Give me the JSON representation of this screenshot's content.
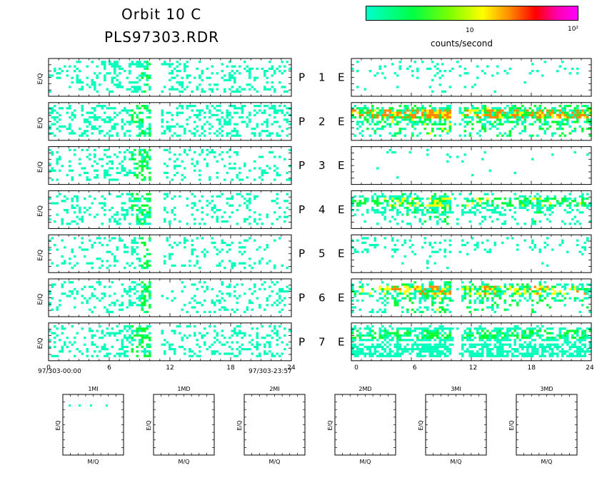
{
  "header": {
    "title_line1": "Orbit 10 C",
    "title_line2": "PLS97303.RDR"
  },
  "colorbar": {
    "tick_mid": "10",
    "tick_high": "10²",
    "label": "counts/second",
    "colors": [
      "#00ffcc",
      "#00ff00",
      "#ffff00",
      "#ff7f00",
      "#ff0000",
      "#ff00ff"
    ]
  },
  "chart_data": [
    {
      "type": "heatmap",
      "group": "P",
      "ylabel": "E/Q",
      "x_ticks": [
        "0",
        "6",
        "12",
        "18",
        "24"
      ],
      "xlim": [
        0,
        24
      ],
      "x_left_label": "97/303-00:00",
      "x_right_label": "97/303-23:57",
      "panels": [
        {
          "label": "P",
          "num": "1",
          "activity": [
            0.35,
            0.3,
            0.5,
            0.4,
            0.45,
            0.6,
            0.55,
            0.5,
            0.8,
            0.85,
            0.0,
            0.4,
            0.5,
            0.45,
            0.3,
            0.4,
            0.3,
            0.5,
            0.55,
            0.4,
            0.3,
            0.25,
            0.4,
            0.3
          ],
          "max_level": 1
        },
        {
          "label": "P",
          "num": "2",
          "activity": [
            0.55,
            0.5,
            0.55,
            0.5,
            0.45,
            0.55,
            0.5,
            0.6,
            0.85,
            0.9,
            0.0,
            0.5,
            0.55,
            0.6,
            0.5,
            0.55,
            0.45,
            0.5,
            0.65,
            0.5,
            0.45,
            0.5,
            0.5,
            0.45
          ],
          "max_level": 1
        },
        {
          "label": "P",
          "num": "3",
          "activity": [
            0.3,
            0.3,
            0.35,
            0.4,
            0.35,
            0.45,
            0.4,
            0.45,
            0.85,
            0.9,
            0.0,
            0.35,
            0.4,
            0.35,
            0.35,
            0.3,
            0.35,
            0.4,
            0.45,
            0.35,
            0.3,
            0.35,
            0.4,
            0.3
          ],
          "max_level": 1
        },
        {
          "label": "P",
          "num": "4",
          "activity": [
            0.3,
            0.25,
            0.35,
            0.3,
            0.35,
            0.45,
            0.4,
            0.55,
            0.85,
            0.9,
            0.0,
            0.35,
            0.4,
            0.3,
            0.35,
            0.3,
            0.35,
            0.3,
            0.4,
            0.35,
            0.3,
            0.25,
            0.3,
            0.25
          ],
          "max_level": 1
        },
        {
          "label": "P",
          "num": "5",
          "activity": [
            0.2,
            0.25,
            0.3,
            0.35,
            0.3,
            0.3,
            0.35,
            0.45,
            0.8,
            0.85,
            0.0,
            0.2,
            0.3,
            0.25,
            0.3,
            0.2,
            0.3,
            0.35,
            0.3,
            0.25,
            0.2,
            0.2,
            0.2,
            0.15
          ],
          "max_level": 1
        },
        {
          "label": "P",
          "num": "6",
          "activity": [
            0.3,
            0.35,
            0.3,
            0.4,
            0.35,
            0.45,
            0.4,
            0.5,
            0.8,
            0.85,
            0.0,
            0.1,
            0.15,
            0.2,
            0.2,
            0.25,
            0.3,
            0.35,
            0.4,
            0.3,
            0.25,
            0.3,
            0.3,
            0.25
          ],
          "max_level": 1
        },
        {
          "label": "P",
          "num": "7",
          "activity": [
            0.35,
            0.4,
            0.45,
            0.4,
            0.5,
            0.55,
            0.5,
            0.6,
            0.85,
            0.9,
            0.0,
            0.35,
            0.4,
            0.5,
            0.4,
            0.35,
            0.4,
            0.45,
            0.6,
            0.45,
            0.35,
            0.35,
            0.4,
            0.35
          ],
          "max_level": 1
        }
      ]
    },
    {
      "type": "heatmap",
      "group": "E",
      "x_ticks": [
        "0",
        "6",
        "12",
        "18",
        "24"
      ],
      "xlim": [
        0,
        24
      ],
      "panels": [
        {
          "label": "E",
          "num": "1",
          "activity": [
            0.1,
            0.1,
            0.15,
            0.1,
            0.1,
            0.05,
            0.1,
            0.15,
            0.25,
            0.2,
            0.1,
            0.1,
            0.1,
            0.15,
            0.1,
            0.1,
            0.05,
            0.1,
            0.15,
            0.1,
            0.05,
            0.1,
            0.1,
            0.05
          ],
          "max_level": 1
        },
        {
          "label": "E",
          "num": "2",
          "activity": [
            0.5,
            0.55,
            0.6,
            0.65,
            0.75,
            0.7,
            0.7,
            0.75,
            0.8,
            0.85,
            0.1,
            0.6,
            0.65,
            0.7,
            0.7,
            0.65,
            0.65,
            0.6,
            0.75,
            0.65,
            0.6,
            0.6,
            0.65,
            0.7
          ],
          "max_level": 4
        },
        {
          "label": "E",
          "num": "3",
          "activity": [
            0.02,
            0.02,
            0.03,
            0.02,
            0.05,
            0.05,
            0.03,
            0.03,
            0.06,
            0.05,
            0.02,
            0.02,
            0.03,
            0.02,
            0.02,
            0.02,
            0.02,
            0.02,
            0.03,
            0.02,
            0.02,
            0.02,
            0.02,
            0.02
          ],
          "max_level": 1
        },
        {
          "label": "E",
          "num": "4",
          "activity": [
            0.35,
            0.35,
            0.4,
            0.45,
            0.55,
            0.5,
            0.55,
            0.6,
            0.85,
            0.9,
            0.1,
            0.45,
            0.5,
            0.45,
            0.45,
            0.4,
            0.4,
            0.45,
            0.6,
            0.45,
            0.4,
            0.35,
            0.45,
            0.4
          ],
          "max_level": 3
        },
        {
          "label": "E",
          "num": "5",
          "activity": [
            0.08,
            0.08,
            0.1,
            0.1,
            0.2,
            0.15,
            0.15,
            0.2,
            0.3,
            0.3,
            0.05,
            0.1,
            0.15,
            0.2,
            0.15,
            0.1,
            0.1,
            0.1,
            0.2,
            0.15,
            0.1,
            0.1,
            0.1,
            0.1
          ],
          "max_level": 1
        },
        {
          "label": "E",
          "num": "6",
          "activity": [
            0.3,
            0.35,
            0.35,
            0.45,
            0.6,
            0.55,
            0.55,
            0.6,
            0.75,
            0.7,
            0.1,
            0.5,
            0.5,
            0.6,
            0.55,
            0.5,
            0.5,
            0.5,
            0.65,
            0.5,
            0.45,
            0.45,
            0.5,
            0.5
          ],
          "max_level": 4
        },
        {
          "label": "E",
          "num": "7",
          "activity": [
            0.65,
            0.6,
            0.65,
            0.6,
            0.7,
            0.65,
            0.65,
            0.7,
            0.75,
            0.75,
            0.1,
            0.7,
            0.65,
            0.7,
            0.7,
            0.65,
            0.65,
            0.65,
            0.7,
            0.65,
            0.65,
            0.6,
            0.65,
            0.65
          ],
          "max_level": 2
        }
      ]
    },
    {
      "type": "heatmap",
      "group": "mass",
      "xlabel": "M/Q",
      "ylabel": "E/Q",
      "panels": [
        {
          "title": "1MI",
          "has_data": true
        },
        {
          "title": "1MD",
          "has_data": false
        },
        {
          "title": "2MI",
          "has_data": false
        },
        {
          "title": "2MD",
          "has_data": false
        },
        {
          "title": "3MI",
          "has_data": false
        },
        {
          "title": "3MD",
          "has_data": false
        }
      ]
    }
  ]
}
